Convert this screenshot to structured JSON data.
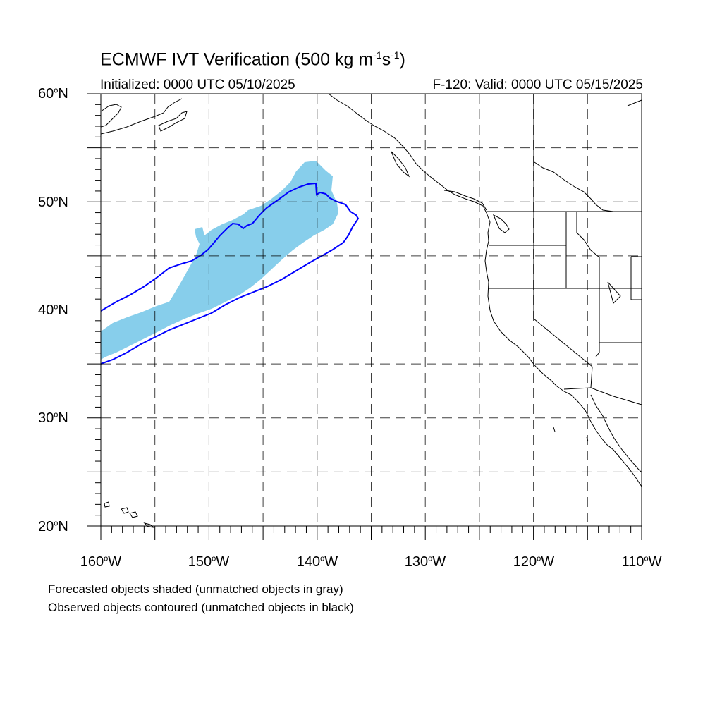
{
  "title": {
    "main": "ECMWF IVT Verification (500 kg m",
    "exp1": "-1",
    "mid": "s",
    "exp2": "-1",
    "close": ")"
  },
  "initialized": "Initialized: 0000 UTC 05/10/2025",
  "valid": "F-120: Valid: 0000 UTC 05/15/2025",
  "lat_labels": [
    "60",
    "50",
    "40",
    "30",
    "20"
  ],
  "lat_suffix": "N",
  "lon_labels": [
    "160",
    "150",
    "140",
    "130",
    "120",
    "110"
  ],
  "lon_suffix": "W",
  "degree": "o",
  "notes": [
    "Forecasted objects shaded (unmatched objects in gray)",
    "Observed objects contoured (unmatched objects in black)"
  ],
  "map_extent": {
    "lon": [
      -160,
      -110
    ],
    "lat": [
      20,
      60
    ]
  },
  "colors": {
    "forecast_fill": "#87CEEB",
    "observed_contour": "#0000FF",
    "coastline": "#000000",
    "grid": "#000000"
  }
}
